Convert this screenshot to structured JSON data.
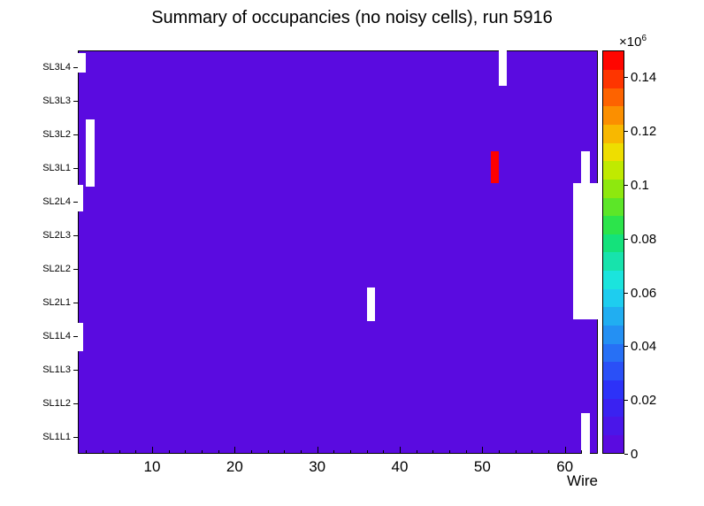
{
  "chart_data": {
    "type": "heatmap",
    "title": "Summary of occupancies (no noisy cells), run 5916",
    "xlabel": "Wire",
    "x_range": [
      1,
      64
    ],
    "x_major_ticks": [
      10,
      20,
      30,
      40,
      50,
      60
    ],
    "x_minor_tick_step": 2,
    "y_categories_top_to_bottom": [
      "SL3L4",
      "SL3L3",
      "SL3L2",
      "SL3L1",
      "SL2L4",
      "SL2L3",
      "SL2L2",
      "SL2L1",
      "SL1L4",
      "SL1L3",
      "SL1L2",
      "SL1L1"
    ],
    "base_color": "#5a0be0",
    "base_value_note": "uniform low occupancy (bottom of scale, violet)",
    "hot_cell": {
      "row": "SL3L1",
      "wire": 51,
      "value_approx": 150000,
      "color": "#ff0000",
      "wire_from": 51,
      "wire_to": 52,
      "row_from": 3.0,
      "row_to": 3.95
    },
    "missing_regions": [
      {
        "desc": "SL3L4 wire 1 (left edge)",
        "wire_from": 1,
        "wire_to": 2,
        "row_from": 0.08,
        "row_to": 0.66
      },
      {
        "desc": "SL3L2-SL3L1 wire 2",
        "wire_from": 2,
        "wire_to": 3,
        "row_from": 2.05,
        "row_to": 4.05
      },
      {
        "desc": "SL3L4 wire 52",
        "wire_from": 52,
        "wire_to": 53,
        "row_from": 0.0,
        "row_to": 1.05
      },
      {
        "desc": "SL3L1 wire 62",
        "wire_from": 62,
        "wire_to": 63,
        "row_from": 3.0,
        "row_to": 4.0
      },
      {
        "desc": "SL2L4-SL2L1 wires 61-63 (right edge)",
        "wire_from": 61,
        "wire_to": 64,
        "row_from": 3.95,
        "row_to": 8.0
      },
      {
        "desc": "SL2L1 wire 36",
        "wire_from": 36,
        "wire_to": 37,
        "row_from": 7.05,
        "row_to": 8.05
      },
      {
        "desc": "SL2L4 wire 1 (left edge)",
        "wire_from": 1,
        "wire_to": 1.6,
        "row_from": 4.0,
        "row_to": 4.8
      },
      {
        "desc": "SL1L4 wire 1 (left edge)",
        "wire_from": 1,
        "wire_to": 1.6,
        "row_from": 8.1,
        "row_to": 8.95
      },
      {
        "desc": "SL1L2-SL1L1 wire 62 (bottom right)",
        "wire_from": 62,
        "wire_to": 63,
        "row_from": 10.8,
        "row_to": 12.0
      }
    ],
    "colorbar": {
      "multiplier_base": "×10",
      "multiplier_exp": "6",
      "zmin": 0,
      "zmax_e6": 0.15,
      "ticks": [
        0,
        0.02,
        0.04,
        0.06,
        0.08,
        0.1,
        0.12,
        0.14
      ],
      "tick_labels": [
        "0",
        "0.02",
        "0.04",
        "0.06",
        "0.08",
        "0.1",
        "0.12",
        "0.14"
      ],
      "palette_bottom_to_top": [
        "#5a0be0",
        "#4a16e9",
        "#3a22f1",
        "#2d32f8",
        "#2a50f7",
        "#2770f5",
        "#2490f3",
        "#21aef1",
        "#1ecdef",
        "#1be4dd",
        "#17e3ac",
        "#14e27b",
        "#2ce44b",
        "#5ce628",
        "#8ee80e",
        "#c0ea00",
        "#eede00",
        "#f8b800",
        "#fb8f00",
        "#fd6300",
        "#fe3500",
        "#ff0600"
      ]
    }
  }
}
